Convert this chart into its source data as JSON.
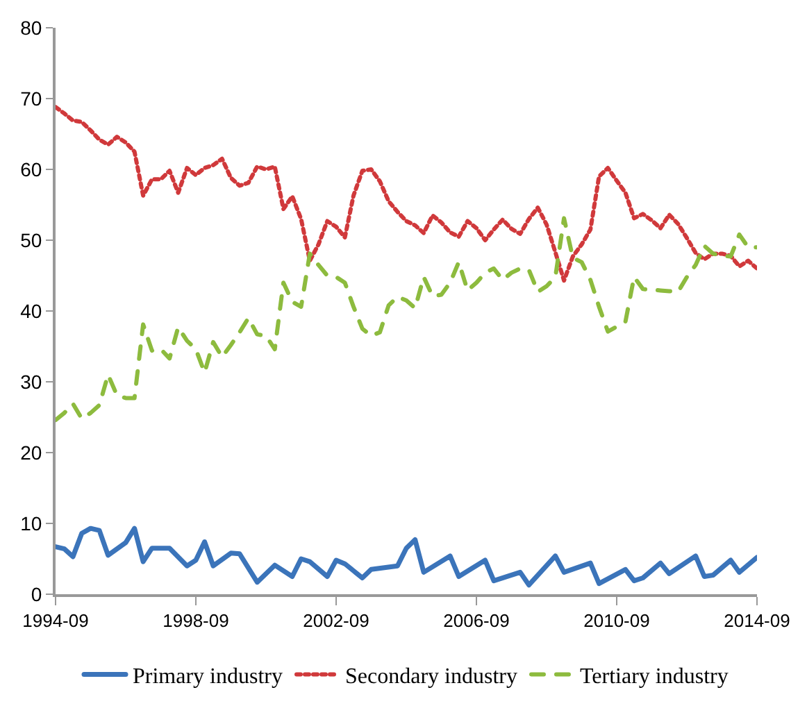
{
  "chart_data": {
    "type": "line",
    "x": [
      "1994-09",
      "1994-12",
      "1995-03",
      "1995-06",
      "1995-09",
      "1995-12",
      "1996-03",
      "1996-06",
      "1996-09",
      "1996-12",
      "1997-03",
      "1997-06",
      "1997-09",
      "1997-12",
      "1998-03",
      "1998-06",
      "1998-09",
      "1998-12",
      "1999-03",
      "1999-06",
      "1999-09",
      "1999-12",
      "2000-03",
      "2000-06",
      "2000-09",
      "2000-12",
      "2001-03",
      "2001-06",
      "2001-09",
      "2001-12",
      "2002-03",
      "2002-06",
      "2002-09",
      "2002-12",
      "2003-03",
      "2003-06",
      "2003-09",
      "2003-12",
      "2004-03",
      "2004-06",
      "2004-09",
      "2004-12",
      "2005-03",
      "2005-06",
      "2005-09",
      "2005-12",
      "2006-03",
      "2006-06",
      "2006-09",
      "2006-12",
      "2007-03",
      "2007-06",
      "2007-09",
      "2007-12",
      "2008-03",
      "2008-06",
      "2008-09",
      "2008-12",
      "2009-03",
      "2009-06",
      "2009-09",
      "2009-12",
      "2010-03",
      "2010-06",
      "2010-09",
      "2010-12",
      "2011-03",
      "2011-06",
      "2011-09",
      "2011-12",
      "2012-03",
      "2012-06",
      "2012-09",
      "2012-12",
      "2013-03",
      "2013-06",
      "2013-09",
      "2013-12",
      "2014-03",
      "2014-06",
      "2014-09"
    ],
    "series": [
      {
        "name": "Primary industry",
        "color": "#3b74ba",
        "line_style": "solid",
        "x": [
          "1994-09",
          "1994-12",
          "1995-03",
          "1995-06",
          "1995-09",
          "1995-12",
          "1996-03",
          "1996-09",
          "1996-12",
          "1997-03",
          "1997-06",
          "1997-12",
          "1998-06",
          "1998-09",
          "1998-12",
          "1999-03",
          "1999-09",
          "1999-12",
          "2000-06",
          "2000-12",
          "2001-06",
          "2001-09",
          "2001-12",
          "2002-06",
          "2002-09",
          "2002-12",
          "2003-06",
          "2003-09",
          "2004-06",
          "2004-09",
          "2004-12",
          "2005-03",
          "2005-12",
          "2006-03",
          "2006-12",
          "2007-03",
          "2007-12",
          "2008-03",
          "2008-12",
          "2009-03",
          "2009-12",
          "2010-03",
          "2010-12",
          "2011-03",
          "2011-06",
          "2011-12",
          "2012-03",
          "2012-12",
          "2013-03",
          "2013-06",
          "2013-12",
          "2014-03",
          "2014-09"
        ],
        "values": [
          6.7,
          6.4,
          5.3,
          8.6,
          9.3,
          9.0,
          5.5,
          7.3,
          9.3,
          4.6,
          6.5,
          6.5,
          4.0,
          4.8,
          7.4,
          4.0,
          5.8,
          5.7,
          1.7,
          4.1,
          2.5,
          5.0,
          4.6,
          2.5,
          4.8,
          4.3,
          2.3,
          3.5,
          4.0,
          6.5,
          7.7,
          3.1,
          5.4,
          2.5,
          4.8,
          1.9,
          3.1,
          1.3,
          5.4,
          3.1,
          4.4,
          1.5,
          3.5,
          1.9,
          2.3,
          4.4,
          2.9,
          5.4,
          2.5,
          2.7,
          4.8,
          3.1,
          5.2
        ]
      },
      {
        "name": "Secondary industry",
        "color": "#d0393b",
        "line_style": "dotted",
        "values": [
          68.8,
          67.9,
          66.9,
          66.7,
          65.5,
          64.2,
          63.5,
          64.6,
          63.8,
          62.5,
          56.3,
          58.6,
          58.6,
          59.8,
          56.7,
          60.2,
          59.2,
          60.2,
          60.6,
          61.5,
          58.8,
          57.7,
          58.1,
          60.4,
          60.0,
          60.4,
          54.4,
          56.2,
          53.0,
          47.1,
          49.4,
          52.7,
          51.9,
          50.4,
          56.3,
          59.8,
          60.0,
          58.3,
          55.5,
          54.0,
          52.7,
          52.1,
          51.0,
          53.5,
          52.5,
          51.1,
          50.5,
          52.7,
          51.7,
          50.0,
          51.5,
          52.9,
          51.6,
          50.9,
          53.0,
          54.6,
          52.2,
          48.3,
          44.3,
          47.7,
          49.4,
          51.5,
          59.0,
          60.2,
          58.4,
          56.7,
          53.1,
          53.7,
          52.8,
          51.7,
          53.6,
          52.3,
          50.3,
          48.2,
          47.3,
          48.1,
          48.1,
          47.8,
          46.3,
          47.1,
          46.0
        ]
      },
      {
        "name": "Tertiary industry",
        "color": "#8dbb3e",
        "line_style": "dashed",
        "values": [
          24.6,
          25.6,
          26.9,
          24.8,
          25.6,
          26.7,
          31.0,
          28.1,
          27.7,
          27.7,
          38.1,
          34.4,
          34.6,
          33.3,
          37.7,
          35.8,
          34.6,
          31.3,
          35.6,
          33.5,
          35.2,
          37.0,
          39.0,
          36.7,
          36.5,
          34.6,
          44.0,
          41.3,
          40.6,
          48.1,
          46.5,
          45.0,
          44.8,
          44.0,
          40.6,
          37.5,
          36.5,
          37.0,
          40.8,
          42.0,
          41.5,
          40.4,
          44.8,
          42.1,
          42.3,
          44.0,
          46.9,
          42.9,
          44.0,
          45.4,
          46.0,
          44.4,
          45.4,
          46.0,
          45.8,
          42.7,
          43.5,
          44.8,
          53.1,
          47.5,
          46.9,
          44.4,
          40.6,
          37.1,
          37.8,
          38.5,
          44.8,
          43.1,
          43.0,
          42.9,
          42.8,
          42.7,
          44.8,
          46.5,
          49.2,
          48.1,
          47.8,
          47.7,
          50.8,
          49.0,
          49.0
        ]
      }
    ],
    "xlim": [
      "1994-09",
      "2014-09"
    ],
    "xticks": [
      {
        "value": "1994-09",
        "label": "1994-09"
      },
      {
        "value": "1998-09",
        "label": "1998-09"
      },
      {
        "value": "2002-09",
        "label": "2002-09"
      },
      {
        "value": "2006-09",
        "label": "2006-09"
      },
      {
        "value": "2010-09",
        "label": "2010-09"
      },
      {
        "value": "2014-09",
        "label": "2014-09"
      }
    ],
    "ylim": [
      0,
      80
    ],
    "yticks": [
      0,
      10,
      20,
      30,
      40,
      50,
      60,
      70,
      80
    ],
    "grid": false,
    "legend": "bottom"
  }
}
